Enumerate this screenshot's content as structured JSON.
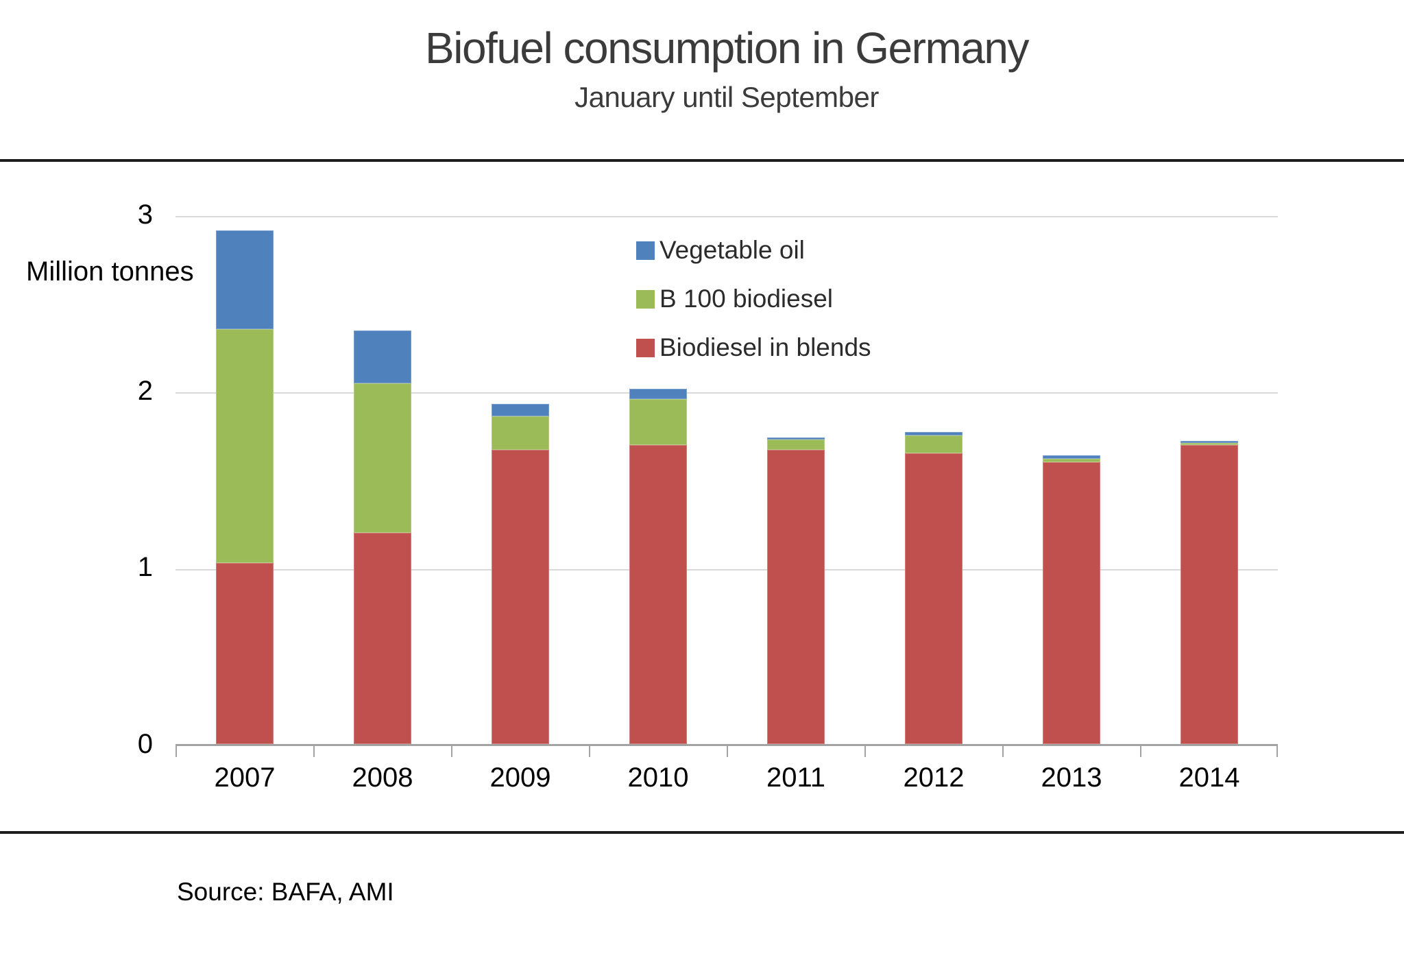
{
  "header": {
    "title": "Biofuel consumption in Germany",
    "subtitle": "January until September"
  },
  "y_axis": {
    "label": "Million tonnes",
    "ticks": [
      "3",
      "2",
      "1",
      "0"
    ]
  },
  "legend": {
    "items": [
      {
        "label": "Vegetable oil",
        "color": "#4F81BD"
      },
      {
        "label": "B 100 biodiesel",
        "color": "#9BBB59"
      },
      {
        "label": "Biodiesel in blends",
        "color": "#C0504D"
      }
    ]
  },
  "source_note": "Source: BAFA, AMI",
  "chart_data": {
    "type": "bar",
    "stacked": true,
    "title": "Biofuel consumption in Germany",
    "subtitle": "January until September",
    "ylabel": "Million tonnes",
    "ylim": [
      0,
      3
    ],
    "grid": "horizontal",
    "legend_position": "upper-center-inside",
    "categories": [
      "2007",
      "2008",
      "2009",
      "2010",
      "2011",
      "2012",
      "2013",
      "2014"
    ],
    "series": [
      {
        "name": "Biodiesel in blends",
        "color": "#C0504D",
        "values": [
          1.03,
          1.2,
          1.67,
          1.7,
          1.67,
          1.65,
          1.6,
          1.7
        ]
      },
      {
        "name": "B 100 biodiesel",
        "color": "#9BBB59",
        "values": [
          1.33,
          0.85,
          0.19,
          0.26,
          0.06,
          0.1,
          0.02,
          0.01
        ]
      },
      {
        "name": "Vegetable oil",
        "color": "#4F81BD",
        "values": [
          0.56,
          0.3,
          0.07,
          0.06,
          0.01,
          0.02,
          0.02,
          0.01
        ]
      }
    ],
    "totals": [
      2.92,
      2.35,
      1.93,
      2.02,
      1.74,
      1.77,
      1.64,
      1.72
    ]
  }
}
